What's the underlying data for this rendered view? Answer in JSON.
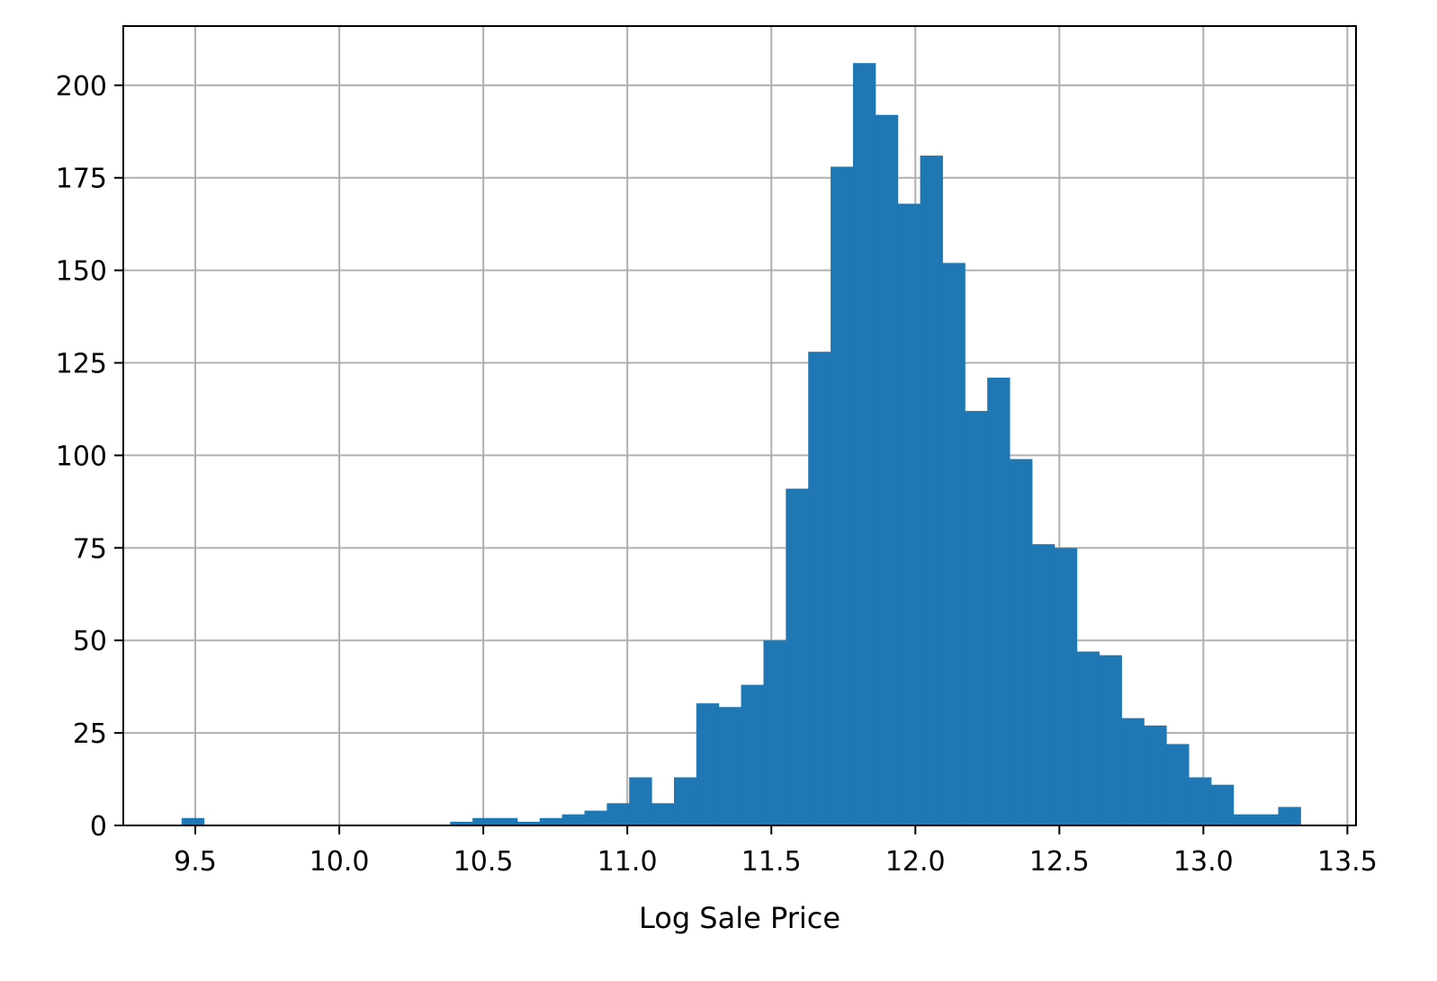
{
  "chart_data": {
    "type": "bar",
    "subtype": "histogram",
    "title": "",
    "xlabel": "Log Sale Price",
    "ylabel": "",
    "xlim": [
      9.25,
      13.53
    ],
    "ylim": [
      0,
      216
    ],
    "grid": true,
    "colors": {
      "bar": "#1f77b4",
      "grid": "#b0b0b0",
      "axis": "#000000"
    },
    "x_ticks": [
      {
        "value": 9.5,
        "label": "9.5"
      },
      {
        "value": 10.0,
        "label": "10.0"
      },
      {
        "value": 10.5,
        "label": "10.5"
      },
      {
        "value": 11.0,
        "label": "11.0"
      },
      {
        "value": 11.5,
        "label": "11.5"
      },
      {
        "value": 12.0,
        "label": "12.0"
      },
      {
        "value": 12.5,
        "label": "12.5"
      },
      {
        "value": 13.0,
        "label": "13.0"
      },
      {
        "value": 13.5,
        "label": "13.5"
      }
    ],
    "y_ticks": [
      {
        "value": 0,
        "label": "0"
      },
      {
        "value": 25,
        "label": "25"
      },
      {
        "value": 50,
        "label": "50"
      },
      {
        "value": 75,
        "label": "75"
      },
      {
        "value": 100,
        "label": "100"
      },
      {
        "value": 125,
        "label": "125"
      },
      {
        "value": 150,
        "label": "150"
      },
      {
        "value": 175,
        "label": "175"
      },
      {
        "value": 200,
        "label": "200"
      }
    ],
    "bin_start": 9.4525,
    "bin_width": 0.0777,
    "values": [
      2,
      0,
      0,
      0,
      0,
      0,
      0,
      0,
      0,
      0,
      0,
      0,
      1,
      2,
      2,
      1,
      2,
      3,
      4,
      6,
      13,
      6,
      13,
      33,
      32,
      38,
      50,
      91,
      128,
      178,
      206,
      192,
      168,
      181,
      152,
      112,
      121,
      99,
      76,
      75,
      47,
      46,
      29,
      27,
      22,
      13,
      11,
      3,
      3,
      5
    ]
  }
}
